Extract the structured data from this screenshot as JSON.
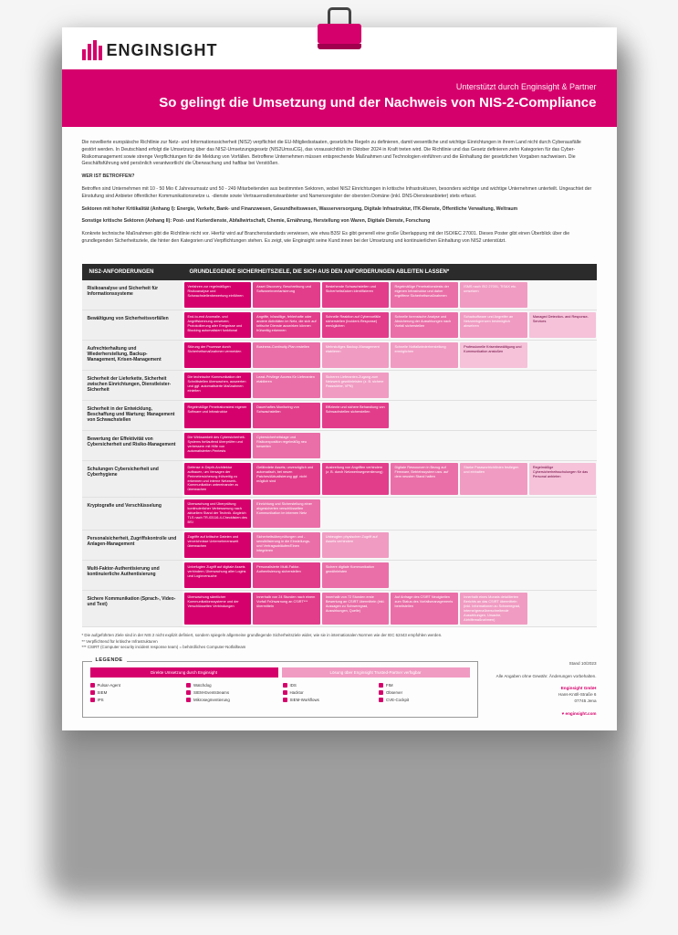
{
  "logo_text": "ENGINSIGHT",
  "hero": {
    "sub": "Unterstützt durch Enginsight & Partner",
    "title": "So gelingt die Umsetzung und der Nachweis von NIS-2-Compliance"
  },
  "intro": {
    "p1": "Die novellierte europäische Richtlinie zur Netz- und Informationssicherheit (NIS2) verpflichtet die EU-Mitgliedsstaaten, gesetzliche Regeln zu definieren, damit wesentliche und wichtige Einrichtungen in ihrem Land nicht durch Cyberausfälle gestört werden. In Deutschland erfolgt die Umsetzung über das NIS2-Umsetzungsgesetz (NIS2UmsuCG), das voraussichtlich im Oktober 2024 in Kraft treten wird. Die Richtlinie und das Gesetz definieren zehn Kategorien für das Cyber-Risikomanagement sowie strenge Verpflichtungen für die Meldung von Vorfällen. Betroffene Unternehmen müssen entsprechende Maßnahmen und Technologien einführen und die Einhaltung der gesetzlichen Vorgaben nachweisen. Die Geschäftsführung wird persönlich verantwortlich/ die Überwachung und haftbar bei Verstößen.",
    "h1": "WER IST BETROFFEN?",
    "p2": "Betroffen sind Unternehmen mit 10 - 50 Mio € Jahresumsatz und 50 - 249 Mitarbeitenden aus bestimmten Sektoren, wobei NIS2 Einrichtungen in kritische Infrastrukturen, besonders wichtige und wichtige Unternehmen unterteilt. Ungeachtet der Einstufung sind Anbieter öffentlicher Kommunikationsnetze u. -dienste sowie Vertrauensdiensteanbieter und Namensregister der obersten Domäne (inkl. DNS-Diensteanbieter) stets erfasst.",
    "p3": "Sektoren mit hoher Kritikalität (Anhang I): Energie, Verkehr, Bank- und Finanzwesen, Gesundheitswesen, Wasserversorgung, Digitale Infrastruktur, ITK-Dienste, Öffentliche Verwaltung, Weltraum",
    "p4": "Sonstige kritische Sektoren (Anhang II): Post- und Kurierdienste, Abfallwirtschaft, Chemie, Ernährung, Herstellung von Waren, Digitale Dienste, Forschung",
    "p5": "Konkrete technische Maßnahmen gibt die Richtlinie nicht vor. Hierfür wird auf Branchenstandards verwiesen, wie etwa B3S! Es gibt generell eine große Überlappung mit der ISO/IEC 27001. Dieses Poster gibt einen Überblick über die grundlegenden Sicherheitsziele, die hinter den Kategorien und Verpflichtungen stehen. Es zeigt, wie Enginsight seine Kund:innen bei der Umsetzung und kontinuierlichen Einhaltung von NIS2 unterstützt."
  },
  "matrix": {
    "head_left": "NIS2-ANFORDERUNGEN",
    "head_right": "GRUNDLEGENDE SICHERHEITSZIELE, DIE SICH AUS DEN ANFORDERUNGEN ABLEITEN LASSEN*",
    "rows": [
      {
        "label": "Risikoanalyse und Sicherheit für Informationssysteme",
        "cells": [
          {
            "t": "Verfahren zur regelmäßigen Risikoanalyse und Schwachstellenbewertung einführen",
            "c": "c1"
          },
          {
            "t": "Asset Discovery, Beschreibung und Softwareinventarisierung",
            "c": "c2"
          },
          {
            "t": "Bestehende Schwachstellen und Sicherheitslücken identifizieren",
            "c": "c2"
          },
          {
            "t": "Regelmäßige Penetrationstests der eigenen Infrastruktur und daher ergriffene Sicherheitsmaßnahmen",
            "c": "c3"
          },
          {
            "t": "ISMS nach ISO 27001, TISAX etc. umsetzen",
            "c": "c4"
          },
          {
            "t": "",
            "c": "empty"
          }
        ]
      },
      {
        "label": "Bewältigung von Sicherheitsvorfällen",
        "cells": [
          {
            "t": "End-to-end Anomalie- und Angriffskennung umsetzen; Protokollierung aller Ereignisse und Blocking automatisiert funktional",
            "c": "c1"
          },
          {
            "t": "Angriffe, böswillige, fehlerhafte oder andere Aktivitäten im Netz, die sich auf kritische Dienste auswirken können frühzeitig erkennen",
            "c": "c2"
          },
          {
            "t": "Schnelle Reaktion auf Cybervorfälle sicherstellen (Incident-Response) ermöglichen",
            "c": "c2"
          },
          {
            "t": "Schnelle forensische Analyse und Absicherung der Auswirkungen nach Vorfall sicherstellen",
            "c": "c3"
          },
          {
            "t": "Schadsoftware und Angreifer an Netzwerkgrenzen bestmöglich abwehren",
            "c": "c4"
          },
          {
            "t": "Managed Detection- and Response-Services",
            "c": "c5"
          }
        ]
      },
      {
        "label": "Aufrechterhaltung und Wiederherstellung, Backup-Management, Krisen-Management",
        "cells": [
          {
            "t": "Störung der Prozesse durch Sicherheitsmaßnahmen vermeiden",
            "c": "c1"
          },
          {
            "t": "Business-Continuity-Plan erstellen",
            "c": "c3"
          },
          {
            "t": "Mehrstufiges Backup-Management etablieren",
            "c": "c4"
          },
          {
            "t": "Schnelle Notfallwiederherstellung ermöglichen",
            "c": "c4"
          },
          {
            "t": "Professionelle Krisenbewältigung und Kommunikation anstoßen",
            "c": "c5"
          },
          {
            "t": "",
            "c": "empty"
          }
        ]
      },
      {
        "label": "Sicherheit der Lieferkette, Sicherheit zwischen Einrichtungen, Dienstleister-Sicherheit",
        "cells": [
          {
            "t": "Die technische Kommunikation der Schnittstellen überwachen, auswerten und ggf. automatisierte Maßnahmen einleiten",
            "c": "c1"
          },
          {
            "t": "Least-Privilege Access für Lieferanten etablieren",
            "c": "c3"
          },
          {
            "t": "Sicheren Lieferanten-Zugang zum Netzwerk gewährleisten (z. B. sichere Passwörter, VPN)",
            "c": "c4"
          },
          {
            "t": "",
            "c": "empty"
          },
          {
            "t": "",
            "c": "empty"
          },
          {
            "t": "",
            "c": "empty"
          }
        ]
      },
      {
        "label": "Sicherheit in der Entwicklung, Beschaffung und Wartung; Management von Schwachstellen",
        "cells": [
          {
            "t": "Regelmäßige Penetrationstest eigener Software und Infrastruktur",
            "c": "c1"
          },
          {
            "t": "Dauerhaftes Monitoring von Schwachstellen",
            "c": "c2"
          },
          {
            "t": "Effiziente und sichere Behandlung von Schwachstellen sicherstellen",
            "c": "c2"
          },
          {
            "t": "",
            "c": "empty"
          },
          {
            "t": "",
            "c": "empty"
          },
          {
            "t": "",
            "c": "empty"
          }
        ]
      },
      {
        "label": "Bewertung der Effektivität von Cybersicherheit und Risiko-Management",
        "cells": [
          {
            "t": "Die Wirksamkeit des Cybersicherheit-Systems fortlaufend überprüfen und verbessern mit Hilfe von automatisierten Pentests",
            "c": "c1"
          },
          {
            "t": "Cybersicherheitslage und Risikoexposition regelmäßig neu bewerten",
            "c": "c3"
          },
          {
            "t": "",
            "c": "empty"
          },
          {
            "t": "",
            "c": "empty"
          },
          {
            "t": "",
            "c": "empty"
          },
          {
            "t": "",
            "c": "empty"
          }
        ]
      },
      {
        "label": "Schulungen Cybersicherheit und Cyberhygiene",
        "cells": [
          {
            "t": "Defense in Depth-Architektur aufbauen, um Versagen der Perimetersicherung frühzeitig zu erkennen und interne Netzwerk-Kommunikation untereinander zu überwachen",
            "c": "c1"
          },
          {
            "t": "Gefährdete Assets; unverzüglich und automatisch, bei neuen Patches/Aktualisierung ggf. nicht möglich sind",
            "c": "c2"
          },
          {
            "t": "Ausbreitung von Angriffen verhindern (z. B. durch Netzwerksegmentierung)",
            "c": "c2"
          },
          {
            "t": "Digitale Ressourcen in Bezug auf Firmware, Betriebssystem usw. auf dem neusten Stand halten",
            "c": "c3"
          },
          {
            "t": "Starke Passwortrichtlinien festlegen und einhalten",
            "c": "c4"
          },
          {
            "t": "Regelmäßige Cybersicherheitsschulungen für das Personal anbieten",
            "c": "c5"
          }
        ]
      },
      {
        "label": "Kryptografie und Verschlüsselung",
        "cells": [
          {
            "t": "Überwachung und Überprüfung kontinuierlicher Verbesserung nach aktuellem Stand der Technik. Abgleich TLS nach TR-03116-4-Checklisten des BSI",
            "c": "c1"
          },
          {
            "t": "Einrichtung und Sicherstellung einer abgesicherten verschlüsselten Kommunikation im internen Netz",
            "c": "c3"
          },
          {
            "t": "",
            "c": "empty"
          },
          {
            "t": "",
            "c": "empty"
          },
          {
            "t": "",
            "c": "empty"
          },
          {
            "t": "",
            "c": "empty"
          }
        ]
      },
      {
        "label": "Personalsicherheit, Zugriffskontrolle und Anlagen-Management",
        "cells": [
          {
            "t": "Zugriffe auf kritische Dateien und verzeichnisse Unternehmensweit überwachen",
            "c": "c1"
          },
          {
            "t": "Sicherheitsüberprüfungen und -sensibilisierung in die Einstellungs- und Vertragsabläufen/Einen integrieren",
            "c": "c3"
          },
          {
            "t": "Unbeugten physischen Zugriff auf Assets verhindern",
            "c": "c4"
          },
          {
            "t": "",
            "c": "empty"
          },
          {
            "t": "",
            "c": "empty"
          },
          {
            "t": "",
            "c": "empty"
          }
        ]
      },
      {
        "label": "Multi-Faktor-Authentisierung und kontinuierliche Authentisierung",
        "cells": [
          {
            "t": "Unbefugten Zugriff auf digitale Assets verhindern; Überwachung aller Logins und Loginversuche",
            "c": "c1"
          },
          {
            "t": "Personalisierte Multi-Faktor-Authentisierung sicherstellen",
            "c": "c2"
          },
          {
            "t": "Sichere digitale Kommunikation gewährleisten",
            "c": "c3"
          },
          {
            "t": "",
            "c": "empty"
          },
          {
            "t": "",
            "c": "empty"
          },
          {
            "t": "",
            "c": "empty"
          }
        ]
      },
      {
        "label": "Sichere Kommunikation (Sprach-, Video- und Text)",
        "cells": [
          {
            "t": "Überwachung sämtlicher Kommunikationssysteme und der Verschlüsselten Verbindungen",
            "c": "c1"
          },
          {
            "t": "Innerhalb von 24 Stunden nach einem Vorfall Frühwarnung an CSIRT*** übermitteln",
            "c": "c2"
          },
          {
            "t": "Innerhalb von 72 Stunden erste Bewertung an CSIRT übermitteln (inkl. Aussagen zu Schweregrad, Auswirkungen, Quelle)",
            "c": "c3"
          },
          {
            "t": "Auf Anfrage des CSIRT Neuigkeiten zum Status des Vorfallsmanagements bereitstellen",
            "c": "c3"
          },
          {
            "t": "Innerhalb eines Monats detaillierten Berichts an das CSIRT übermitteln (inkl. Informationen zu Schweregrad, interne/grenzüberschreitende Auswirkungen, Ursache, Abhilfemaßnahmen)",
            "c": "c4"
          },
          {
            "t": "",
            "c": "empty"
          }
        ]
      }
    ]
  },
  "footnotes": {
    "f1": "* Die aufgeführten Ziele sind in der NIS 2 nicht explizit definiert, sondern spiegeln allgemeine grundlegende Sicherheitsziele wider, wie sie in internationalen Normen wie der IEC 62443 empfohlen werden.",
    "f2": "** Verpflichtend für kritische Infrastrukturen",
    "f3": "*** CSIRT (Computer security incident response team) = behördliches Computer-Notfallteam"
  },
  "legend": {
    "title": "LEGENDE",
    "bar1": "Direkte Umsetzung durch Enginsight",
    "bar2": "Lösung über Enginsight Trusted-Partner verfügbar",
    "items": [
      "Pulsar-Agent",
      "Watchdog",
      "IDS",
      "FIM",
      "SIEM",
      "SIEM-Eventstreams",
      "Hacktor",
      "Observer",
      "IPS",
      "Mikrosegmentierung",
      "SIEM-Workflows",
      "CVE-Cockpit"
    ]
  },
  "meta": {
    "date": "Stand 10/2023",
    "disclaimer": "Alle Angaben ohne Gewähr. Änderungen vorbehalten.",
    "company": "Enginsight GmbH",
    "addr1": "Hans-Knöll-Straße 6",
    "addr2": "07745 Jena",
    "url": "enginsight.com"
  },
  "colors": {
    "brand": "#d6006c",
    "c1": "#d6006c",
    "c2": "#e23d8b",
    "c3": "#ea6fa8",
    "c4": "#f09bc2",
    "c5": "#f5c2d9"
  }
}
